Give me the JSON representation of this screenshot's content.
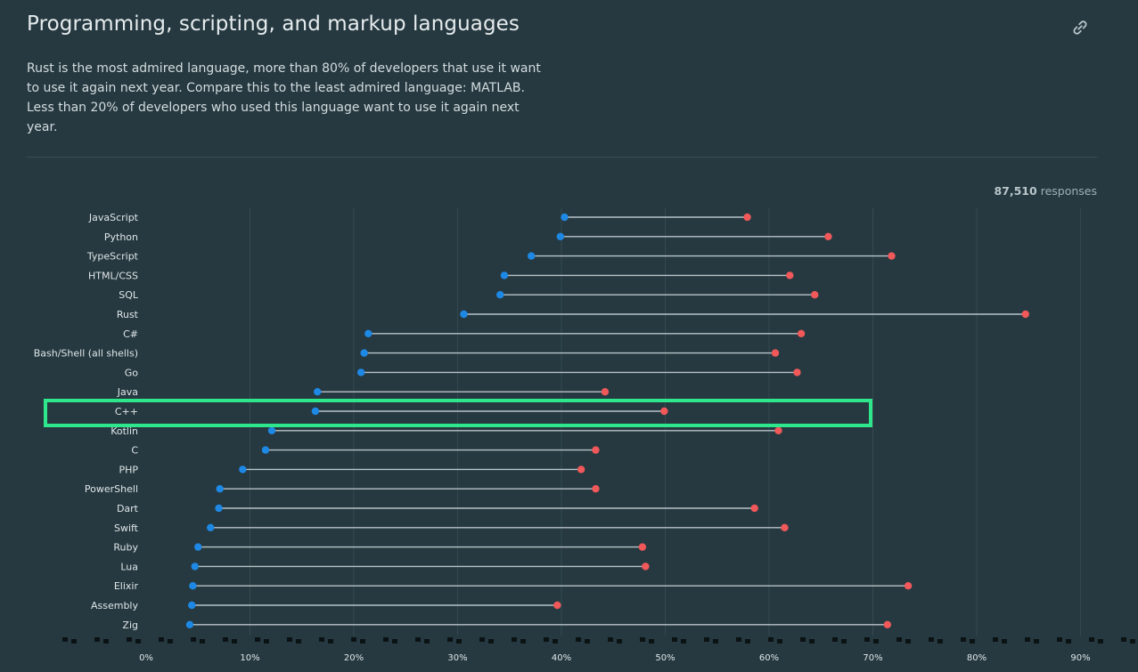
{
  "header": {
    "title": "Programming, scripting, and markup languages",
    "description": "Rust is the most admired language, more than 80% of developers that use it want to use it again next year. Compare this to the least admired language: MATLAB. Less than 20% of developers who used this language want to use it again next year.",
    "link_icon": "link-icon"
  },
  "responses": {
    "count": "87,510",
    "label": "responses"
  },
  "colors": {
    "background": "#263940",
    "series_a": "#1e88e5",
    "series_b": "#f0585a",
    "connector": "#b8c4c8",
    "highlight": "#2ee68c"
  },
  "highlighted_category": "C++",
  "chart_data": {
    "type": "dumbbell",
    "categories": [
      "JavaScript",
      "Python",
      "TypeScript",
      "HTML/CSS",
      "SQL",
      "Rust",
      "C#",
      "Bash/Shell (all shells)",
      "Go",
      "Java",
      "C++",
      "Kotlin",
      "C",
      "PHP",
      "PowerShell",
      "Dart",
      "Swift",
      "Ruby",
      "Lua",
      "Elixir",
      "Assembly",
      "Zig"
    ],
    "series": [
      {
        "values": [
          40.3,
          39.9,
          37.1,
          34.5,
          34.1,
          30.6,
          21.4,
          21.0,
          20.7,
          16.5,
          16.3,
          12.1,
          11.5,
          9.3,
          7.1,
          7.0,
          6.2,
          5.0,
          4.7,
          4.5,
          4.4,
          4.2
        ]
      },
      {
        "values": [
          57.9,
          65.7,
          71.8,
          62.0,
          64.4,
          84.7,
          63.1,
          60.6,
          62.7,
          44.2,
          49.9,
          60.9,
          43.3,
          41.9,
          43.3,
          58.6,
          61.5,
          47.8,
          48.1,
          73.4,
          39.6,
          71.4
        ]
      }
    ],
    "x_ticks": [
      "0%",
      "10%",
      "20%",
      "30%",
      "40%",
      "50%",
      "60%",
      "70%",
      "80%",
      "90%"
    ],
    "xlim": [
      0,
      90
    ],
    "grid": true
  }
}
